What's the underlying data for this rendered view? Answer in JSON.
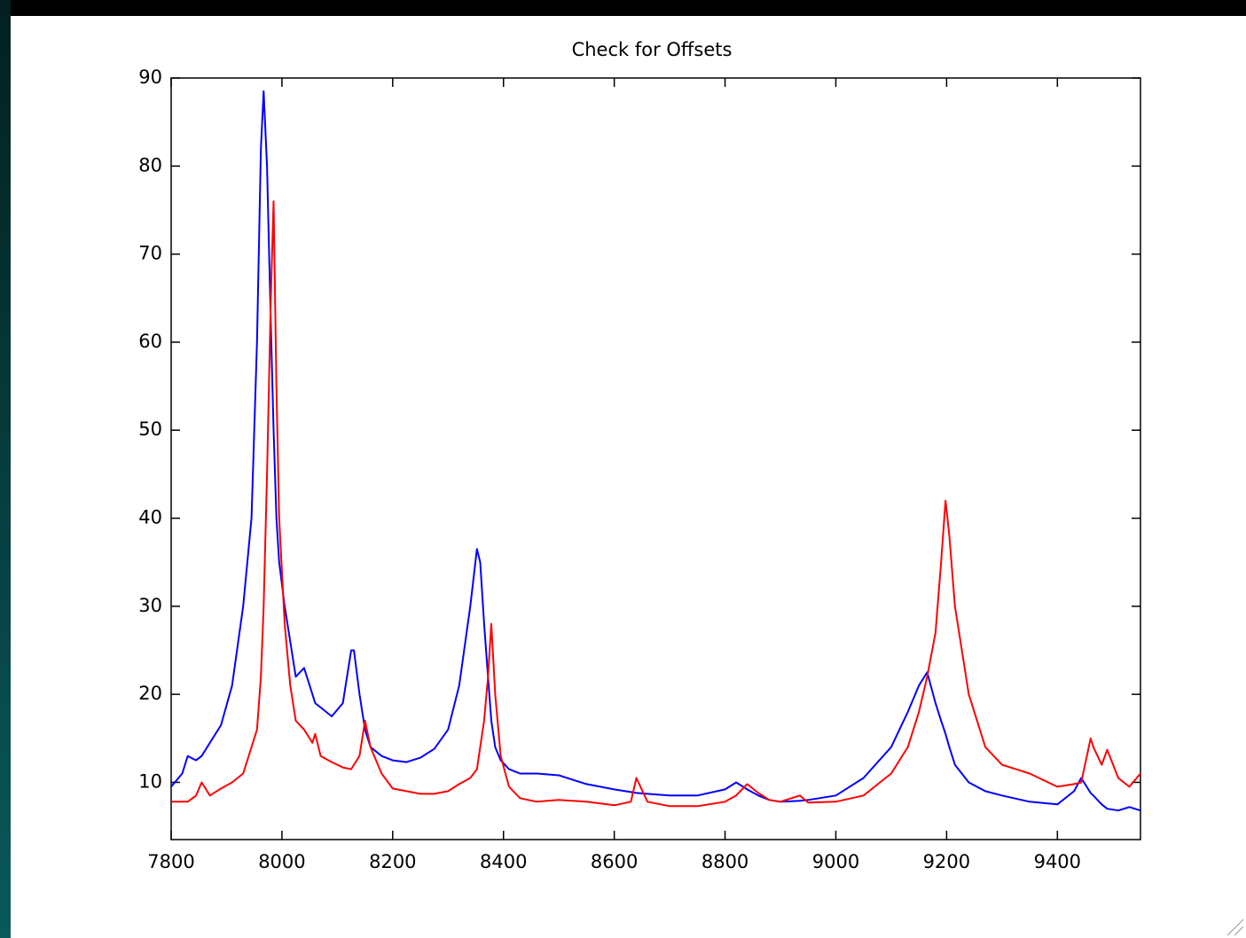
{
  "chart_data": {
    "type": "line",
    "title": "Check for Offsets",
    "x": [
      7800,
      7820,
      7830,
      7845,
      7855,
      7870,
      7890,
      7910,
      7930,
      7945,
      7955,
      7962,
      7967,
      7973,
      7980,
      7985,
      7990,
      7995,
      8005,
      8015,
      8025,
      8040,
      8055,
      8060,
      8070,
      8090,
      8110,
      8125,
      8130,
      8140,
      8150,
      8160,
      8180,
      8200,
      8225,
      8250,
      8275,
      8300,
      8320,
      8340,
      8352,
      8358,
      8365,
      8372,
      8378,
      8385,
      8395,
      8410,
      8430,
      8460,
      8500,
      8550,
      8600,
      8630,
      8640,
      8660,
      8700,
      8750,
      8800,
      8820,
      8840,
      8860,
      8880,
      8900,
      8935,
      8950,
      9000,
      9050,
      9100,
      9130,
      9150,
      9165,
      9180,
      9190,
      9198,
      9205,
      9215,
      9240,
      9270,
      9300,
      9350,
      9400,
      9430,
      9443,
      9460,
      9465,
      9480,
      9490,
      9510,
      9530,
      9550
    ],
    "series": [
      {
        "color": "#0000ff",
        "values": [
          9.5,
          11,
          13,
          12.5,
          13,
          14.5,
          16.5,
          21,
          30,
          40,
          60,
          82,
          88.5,
          80,
          62,
          50,
          40,
          35,
          30,
          26,
          22,
          23,
          20,
          19,
          18.5,
          17.5,
          19,
          25,
          25,
          20,
          16,
          14,
          13,
          12.5,
          12.3,
          12.8,
          13.8,
          16,
          21,
          30,
          36.5,
          35,
          28,
          22,
          17,
          14,
          12.5,
          11.5,
          11,
          11,
          10.8,
          9.8,
          9.2,
          8.9,
          8.8,
          8.7,
          8.5,
          8.5,
          9.2,
          10,
          9.2,
          8.5,
          8,
          7.8,
          7.9,
          8,
          8.5,
          10.5,
          14,
          18,
          21,
          22.5,
          19,
          17,
          15.5,
          14,
          12,
          10,
          9,
          8.5,
          7.8,
          7.5,
          9,
          10.5,
          8.8,
          8.5,
          7.5,
          7,
          6.8,
          7.2,
          6.8
        ]
      },
      {
        "color": "#ff0000",
        "values": [
          7.8,
          7.8,
          7.8,
          8.5,
          10,
          8.5,
          9.3,
          10,
          11,
          14,
          16,
          22,
          30,
          45,
          65,
          76,
          55,
          40,
          28,
          21,
          17,
          16,
          14.5,
          15.5,
          13,
          12.3,
          11.7,
          11.5,
          12,
          13,
          17,
          14,
          11,
          9.3,
          9,
          8.7,
          8.7,
          9,
          9.8,
          10.5,
          11.5,
          14,
          17,
          22,
          28,
          20,
          13,
          9.5,
          8.2,
          7.8,
          8,
          7.8,
          7.4,
          7.8,
          10.5,
          7.8,
          7.3,
          7.3,
          7.8,
          8.5,
          9.8,
          8.8,
          8,
          7.8,
          8.5,
          7.7,
          7.8,
          8.5,
          11,
          14,
          18,
          22,
          27,
          35,
          42,
          38,
          30,
          20,
          14,
          12,
          11,
          9.5,
          9.8,
          10,
          15,
          14,
          12,
          13.7,
          10.5,
          9.5,
          11
        ]
      }
    ],
    "xlim": [
      7800,
      9550
    ],
    "ylim": [
      3.5,
      90
    ],
    "xticks": [
      7800,
      8000,
      8200,
      8400,
      8600,
      8800,
      9000,
      9200,
      9400
    ],
    "yticks": [
      10,
      20,
      30,
      40,
      50,
      60,
      70,
      80,
      90
    ],
    "grid": false
  }
}
